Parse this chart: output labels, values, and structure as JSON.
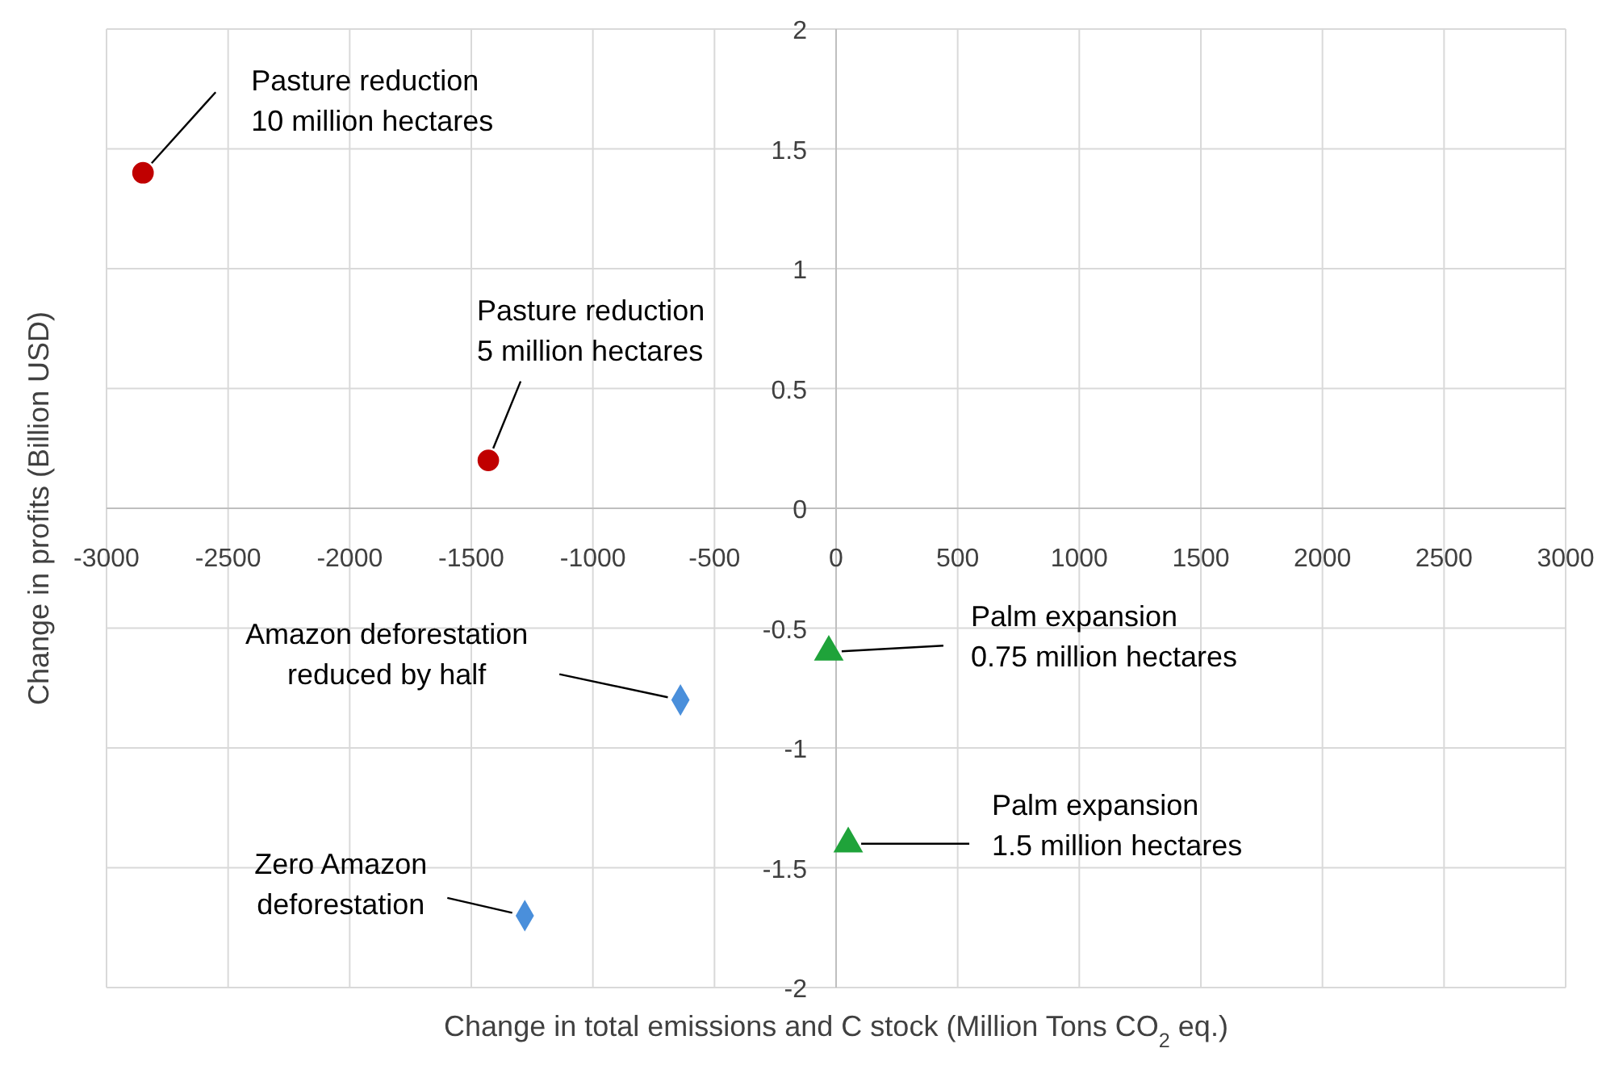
{
  "chart_data": {
    "type": "scatter",
    "xlabel": "Change in total emissions and C stock (Million Tons CO$_{2}$ eq.)",
    "ylabel": "Change in profits (Billion USD)",
    "xlim": [
      -3000,
      3000
    ],
    "xticks": [
      -3000,
      -2500,
      -2000,
      -1500,
      -1000,
      -500,
      0,
      500,
      1000,
      1500,
      2000,
      2500,
      3000
    ],
    "ylim": [
      -2,
      2
    ],
    "yticks": [
      -2,
      -1.5,
      -1,
      -0.5,
      0,
      0.5,
      1,
      1.5,
      2
    ],
    "grid": true,
    "series": [
      {
        "color": "#c00000",
        "marker": "circle",
        "x": [
          -2850,
          -1430
        ],
        "values": [
          1.4,
          0.2
        ]
      },
      {
        "color": "#4a8fdb",
        "marker": "diamond",
        "x": [
          -640,
          -1280
        ],
        "values": [
          -0.8,
          -1.7
        ]
      },
      {
        "color": "#1fa33a",
        "marker": "triangle",
        "x": [
          -30,
          50
        ],
        "values": [
          -0.6,
          -1.4
        ]
      }
    ],
    "annotations": [
      {
        "text": "Pasture reduction\n10 million hectares",
        "x": -2850,
        "y": 1.4
      },
      {
        "text": "Pasture reduction\n5 million hectares",
        "x": -1430,
        "y": 0.2
      },
      {
        "text": "Amazon deforestation\nreduced by half",
        "x": -640,
        "y": -0.8
      },
      {
        "text": "Zero Amazon\ndeforestation",
        "x": -1280,
        "y": -1.7
      },
      {
        "text": "Palm expansion\n0.75 million hectares",
        "x": -30,
        "y": -0.6
      },
      {
        "text": "Palm expansion\n1.5 million hectares",
        "x": 50,
        "y": -1.4
      }
    ]
  }
}
